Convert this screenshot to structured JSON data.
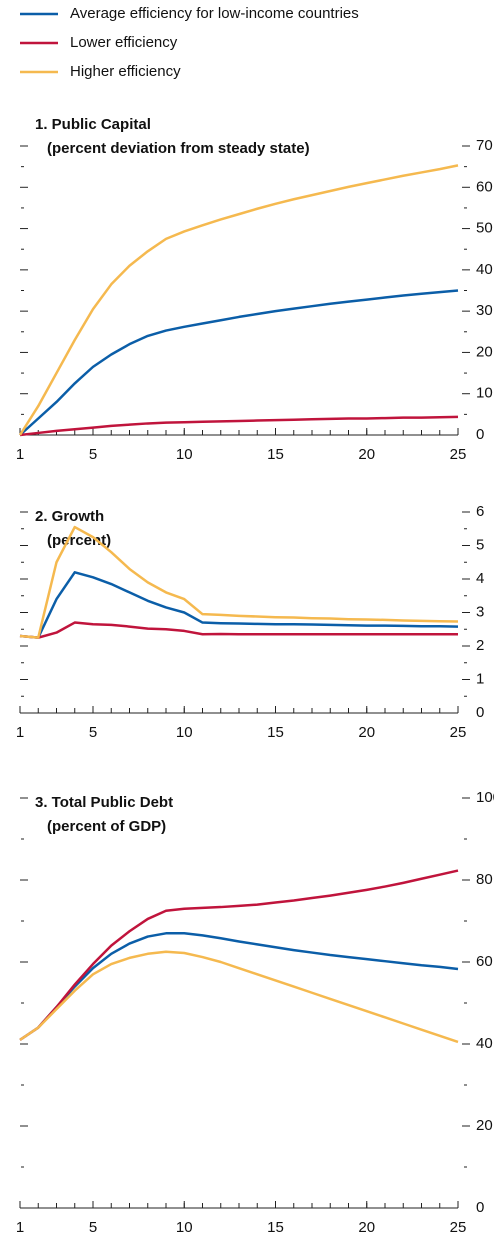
{
  "chart_data": [
    {
      "type": "line",
      "title": "1. Public Capital",
      "subtitle": "(percent deviation from steady state)",
      "x": [
        1,
        2,
        3,
        4,
        5,
        6,
        7,
        8,
        9,
        10,
        11,
        12,
        13,
        14,
        15,
        16,
        17,
        18,
        19,
        20,
        21,
        22,
        23,
        24,
        25
      ],
      "xlim": [
        1,
        25
      ],
      "xticks": [
        1,
        5,
        10,
        15,
        20,
        25
      ],
      "ylim": [
        0,
        70
      ],
      "yticks": [
        0,
        10,
        20,
        30,
        40,
        50,
        60,
        70
      ],
      "series": [
        {
          "name": "Average efficiency for low-income countries",
          "color": "#0b5ea8",
          "values": [
            0,
            4,
            8,
            12.5,
            16.5,
            19.5,
            22,
            24,
            25.3,
            26.2,
            27,
            27.8,
            28.6,
            29.3,
            30,
            30.6,
            31.2,
            31.8,
            32.3,
            32.8,
            33.3,
            33.8,
            34.2,
            34.6,
            35
          ]
        },
        {
          "name": "Lower efficiency",
          "color": "#c0143c",
          "values": [
            0,
            0.5,
            1,
            1.4,
            1.8,
            2.2,
            2.5,
            2.8,
            3,
            3.1,
            3.2,
            3.3,
            3.4,
            3.5,
            3.6,
            3.7,
            3.8,
            3.9,
            4,
            4,
            4.1,
            4.2,
            4.2,
            4.3,
            4.4
          ]
        },
        {
          "name": "Higher efficiency",
          "color": "#f5b94f",
          "values": [
            0,
            7,
            15,
            23,
            30.5,
            36.5,
            41,
            44.5,
            47.5,
            49.3,
            50.8,
            52.2,
            53.5,
            54.8,
            56,
            57.1,
            58.1,
            59.1,
            60.1,
            61,
            61.9,
            62.8,
            63.6,
            64.4,
            65.3
          ]
        }
      ]
    },
    {
      "type": "line",
      "title": "2. Growth",
      "subtitle": "(percent)",
      "x": [
        1,
        2,
        3,
        4,
        5,
        6,
        7,
        8,
        9,
        10,
        11,
        12,
        13,
        14,
        15,
        16,
        17,
        18,
        19,
        20,
        21,
        22,
        23,
        24,
        25
      ],
      "xlim": [
        1,
        25
      ],
      "xticks": [
        1,
        5,
        10,
        15,
        20,
        25
      ],
      "ylim": [
        0,
        6
      ],
      "yticks": [
        0,
        1,
        2,
        3,
        4,
        5,
        6
      ],
      "series": [
        {
          "color": "#0b5ea8",
          "values": [
            2.3,
            2.25,
            3.4,
            4.2,
            4.05,
            3.85,
            3.6,
            3.35,
            3.15,
            3,
            2.7,
            2.68,
            2.67,
            2.66,
            2.65,
            2.65,
            2.64,
            2.63,
            2.62,
            2.61,
            2.61,
            2.6,
            2.59,
            2.59,
            2.58
          ]
        },
        {
          "color": "#c0143c",
          "values": [
            2.3,
            2.25,
            2.4,
            2.7,
            2.65,
            2.63,
            2.58,
            2.52,
            2.5,
            2.45,
            2.35,
            2.36,
            2.35,
            2.35,
            2.35,
            2.35,
            2.35,
            2.35,
            2.35,
            2.35,
            2.35,
            2.35,
            2.35,
            2.35,
            2.35
          ]
        },
        {
          "color": "#f5b94f",
          "values": [
            2.3,
            2.25,
            4.5,
            5.55,
            5.25,
            4.8,
            4.3,
            3.9,
            3.6,
            3.4,
            2.95,
            2.93,
            2.9,
            2.88,
            2.86,
            2.85,
            2.83,
            2.82,
            2.8,
            2.79,
            2.78,
            2.76,
            2.75,
            2.74,
            2.73
          ]
        }
      ]
    },
    {
      "type": "line",
      "title": "3. Total Public Debt",
      "subtitle": "(percent of GDP)",
      "x": [
        1,
        2,
        3,
        4,
        5,
        6,
        7,
        8,
        9,
        10,
        11,
        12,
        13,
        14,
        15,
        16,
        17,
        18,
        19,
        20,
        21,
        22,
        23,
        24,
        25
      ],
      "xlim": [
        1,
        25
      ],
      "xticks": [
        1,
        5,
        10,
        15,
        20,
        25
      ],
      "ylim": [
        0,
        100
      ],
      "yticks": [
        0,
        20,
        40,
        60,
        80,
        100
      ],
      "series": [
        {
          "color": "#0b5ea8",
          "values": [
            41,
            44,
            49,
            54,
            58.5,
            62,
            64.5,
            66.2,
            67,
            67,
            66.5,
            65.8,
            65,
            64.3,
            63.6,
            62.9,
            62.3,
            61.7,
            61.2,
            60.7,
            60.2,
            59.7,
            59.2,
            58.8,
            58.3
          ]
        },
        {
          "color": "#c0143c",
          "values": [
            41,
            44,
            49,
            54.5,
            59.5,
            64,
            67.5,
            70.5,
            72.5,
            73,
            73.2,
            73.4,
            73.7,
            74,
            74.5,
            75,
            75.6,
            76.2,
            76.9,
            77.6,
            78.4,
            79.3,
            80.3,
            81.3,
            82.3
          ]
        },
        {
          "color": "#f5b94f",
          "values": [
            41,
            44,
            48.5,
            53,
            57,
            59.5,
            61,
            62,
            62.5,
            62.2,
            61.2,
            60,
            58.5,
            57,
            55.5,
            54,
            52.5,
            51,
            49.5,
            48,
            46.5,
            45,
            43.5,
            42,
            40.5
          ]
        }
      ]
    }
  ]
}
